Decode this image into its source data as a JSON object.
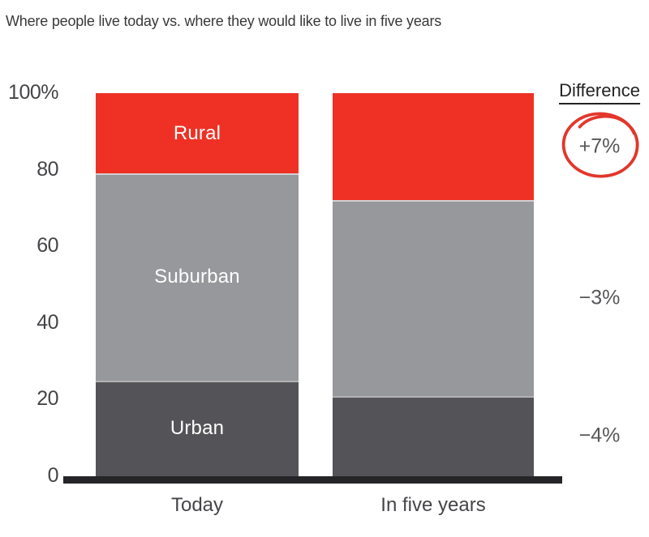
{
  "title": "Where people live today vs. where they would like to live in five years",
  "chart_data": {
    "type": "bar",
    "stacked": true,
    "title": "Where people live today vs. where they would like to live in five years",
    "categories": [
      "Today",
      "In five years"
    ],
    "series": [
      {
        "name": "Urban",
        "values": [
          25,
          21
        ],
        "color": "#545458"
      },
      {
        "name": "Suburban",
        "values": [
          54,
          51
        ],
        "color": "#97989B"
      },
      {
        "name": "Rural",
        "values": [
          21,
          28
        ],
        "color": "#EE3124"
      }
    ],
    "segment_labels_shown_on_category": "Today",
    "y_axis": {
      "range": [
        0,
        100
      ],
      "grid": false,
      "ticks": [
        {
          "label": "100%",
          "value": 100
        },
        {
          "label": "80",
          "value": 80
        },
        {
          "label": "60",
          "value": 60
        },
        {
          "label": "40",
          "value": 40
        },
        {
          "label": "20",
          "value": 20
        },
        {
          "label": "0",
          "value": 0
        }
      ]
    },
    "legend": "segment-names-inside-first-bar",
    "differences": {
      "header": "Difference",
      "values": [
        {
          "segment": "Rural",
          "label": "+7%",
          "highlighted": true,
          "annotation": "hand-drawn red circle"
        },
        {
          "segment": "Suburban",
          "label": "−3%",
          "highlighted": false
        },
        {
          "segment": "Urban",
          "label": "−4%",
          "highlighted": false
        }
      ]
    }
  },
  "colors": {
    "background": "#FFFFFF",
    "urban": "#545458",
    "suburban": "#97989B",
    "rural": "#EE3124",
    "axis_line": "#252527",
    "tick_text": "#454549",
    "title_text": "#39393B",
    "bar_label_text": "#FFFFFF",
    "diff_text": "#57575A",
    "diff_header_text": "#232325",
    "highlight_circle": "#E2372B"
  }
}
